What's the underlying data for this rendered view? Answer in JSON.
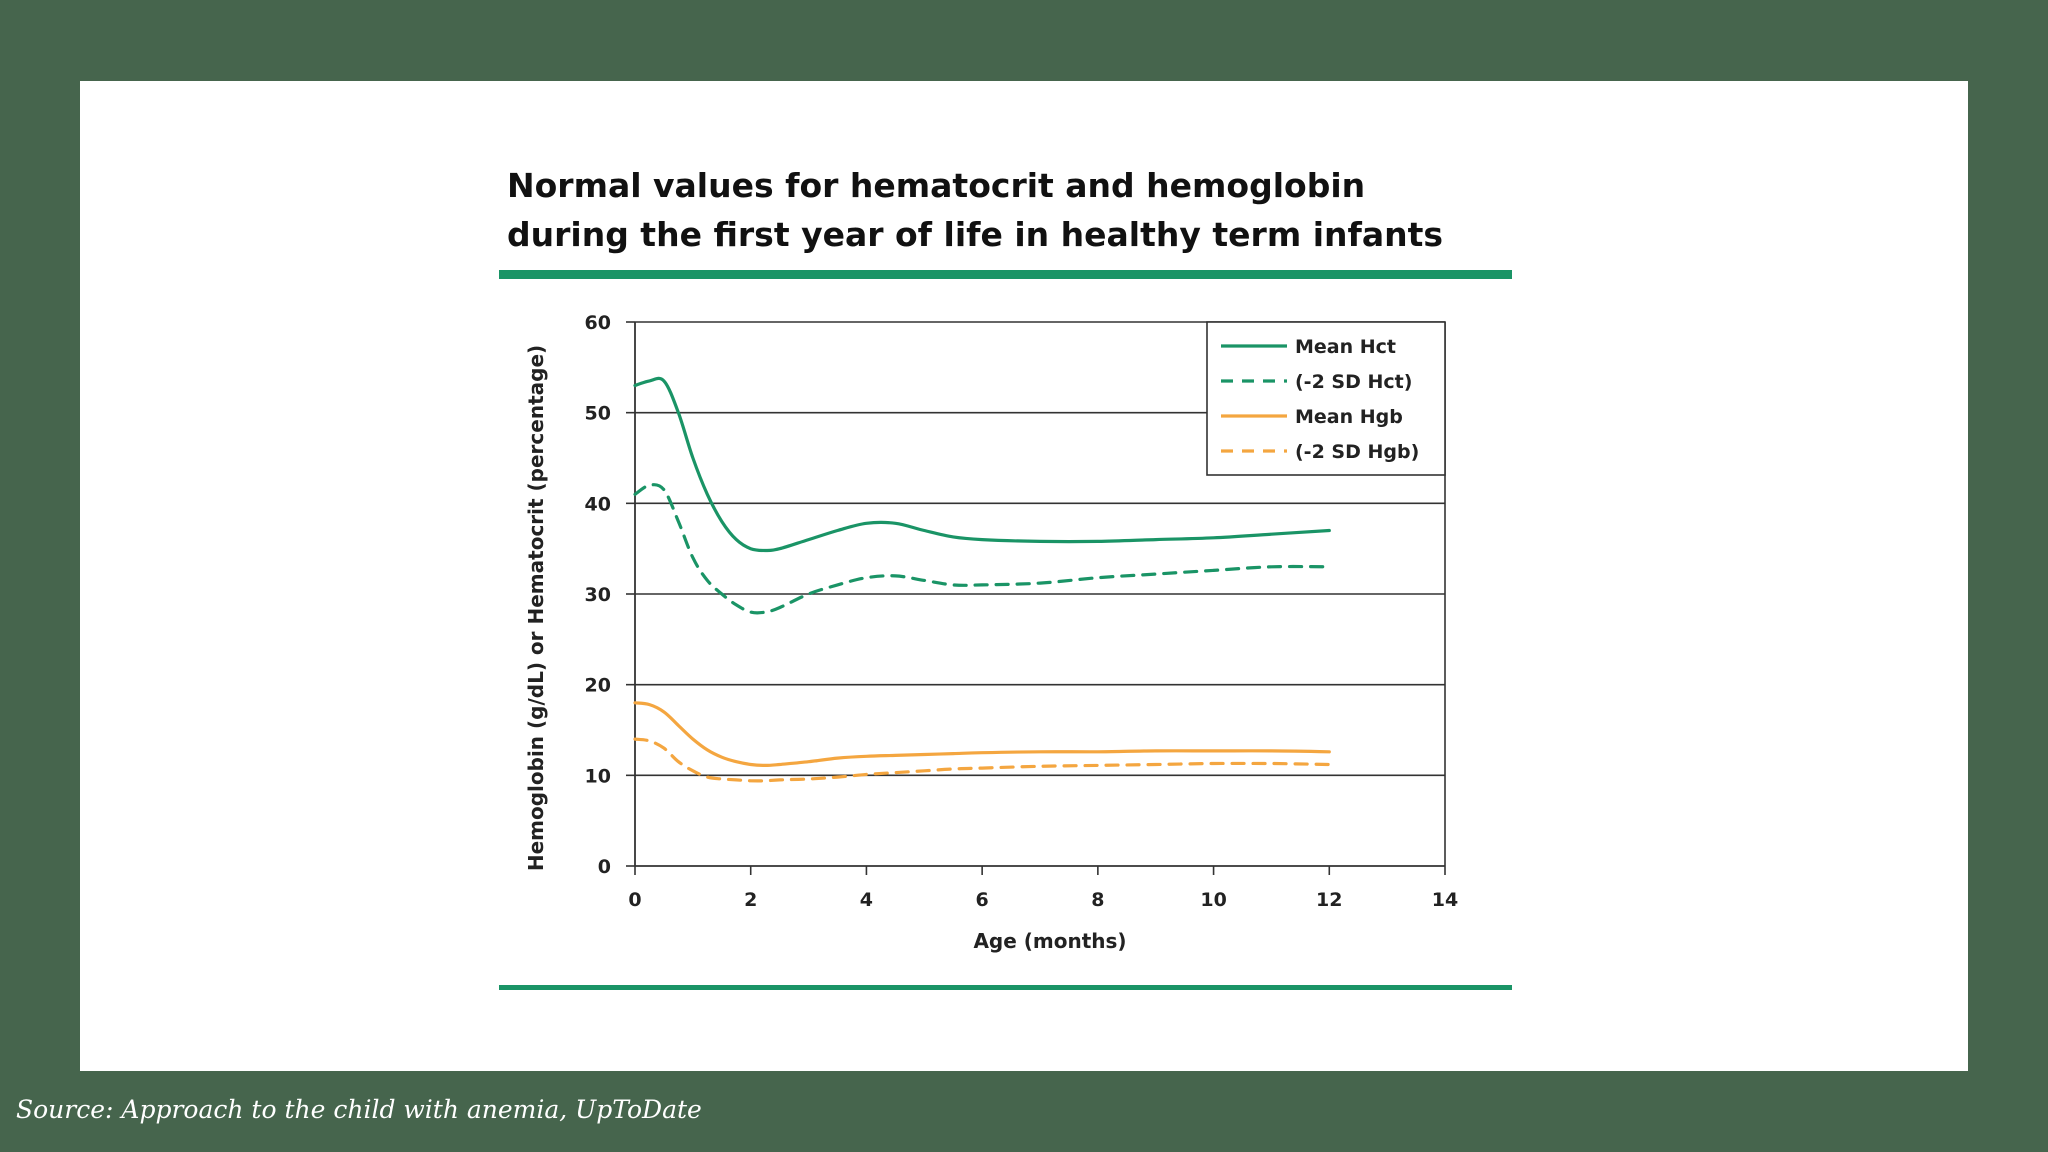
{
  "source": "Source: Approach to the child with anemia, UpToDate",
  "chart_data": {
    "type": "line",
    "title_line1": "Normal values for hematocrit and hemoglobin",
    "title_line2": "during the first year of life in healthy term infants",
    "xlabel": "Age (months)",
    "ylabel": "Hemoglobin (g/dL) or Hematocrit (percentage)",
    "xlim": [
      0,
      14
    ],
    "ylim": [
      0,
      60
    ],
    "x_ticks": [
      0,
      2,
      4,
      6,
      8,
      10,
      12,
      14
    ],
    "y_ticks": [
      0,
      10,
      20,
      30,
      40,
      50,
      60
    ],
    "gridlines": "horizontal",
    "legend_position": "top-right",
    "series": [
      {
        "name": "Mean Hct",
        "color": "#1a9466",
        "dash": "solid",
        "x": [
          0,
          0.25,
          0.5,
          0.75,
          1,
          1.25,
          1.5,
          1.75,
          2,
          2.25,
          2.5,
          3,
          3.5,
          4,
          4.5,
          5,
          5.5,
          6,
          7,
          8,
          9,
          10,
          11,
          12
        ],
        "y": [
          53,
          53.5,
          53.5,
          50,
          45,
          41,
          38,
          36,
          35,
          34.8,
          35,
          36,
          37,
          37.8,
          37.8,
          37,
          36.3,
          36,
          35.8,
          35.8,
          36,
          36.2,
          36.6,
          37
        ]
      },
      {
        "name": "(-2 SD Hct)",
        "color": "#1a9466",
        "dash": "dashed",
        "x": [
          0,
          0.25,
          0.5,
          0.75,
          1,
          1.25,
          1.5,
          1.75,
          2,
          2.25,
          2.5,
          3,
          3.5,
          4,
          4.5,
          5,
          5.5,
          6,
          7,
          8,
          9,
          10,
          11,
          12
        ],
        "y": [
          41,
          42,
          41.5,
          38,
          34,
          31.5,
          30,
          28.8,
          28,
          28,
          28.5,
          30,
          31,
          31.8,
          32,
          31.5,
          31,
          31,
          31.2,
          31.8,
          32.2,
          32.6,
          33,
          33
        ]
      },
      {
        "name": "Mean Hgb",
        "color": "#f4a640",
        "dash": "solid",
        "x": [
          0,
          0.25,
          0.5,
          0.75,
          1,
          1.25,
          1.5,
          1.75,
          2,
          2.25,
          2.5,
          3,
          3.5,
          4,
          4.5,
          5,
          5.5,
          6,
          7,
          8,
          9,
          10,
          11,
          12
        ],
        "y": [
          18,
          17.8,
          17,
          15.5,
          14,
          12.8,
          12,
          11.5,
          11.2,
          11.1,
          11.2,
          11.5,
          11.9,
          12.1,
          12.2,
          12.3,
          12.4,
          12.5,
          12.6,
          12.6,
          12.7,
          12.7,
          12.7,
          12.6
        ]
      },
      {
        "name": "(-2 SD Hgb)",
        "color": "#f4a640",
        "dash": "dashed",
        "x": [
          0,
          0.25,
          0.5,
          0.75,
          1,
          1.25,
          1.5,
          1.75,
          2,
          2.25,
          2.5,
          3,
          3.5,
          4,
          4.5,
          5,
          5.5,
          6,
          7,
          8,
          9,
          10,
          11,
          12
        ],
        "y": [
          14,
          13.8,
          13,
          11.5,
          10.5,
          9.8,
          9.6,
          9.5,
          9.4,
          9.4,
          9.5,
          9.6,
          9.8,
          10.1,
          10.3,
          10.5,
          10.7,
          10.8,
          11,
          11.1,
          11.2,
          11.3,
          11.3,
          11.2
        ]
      }
    ]
  }
}
